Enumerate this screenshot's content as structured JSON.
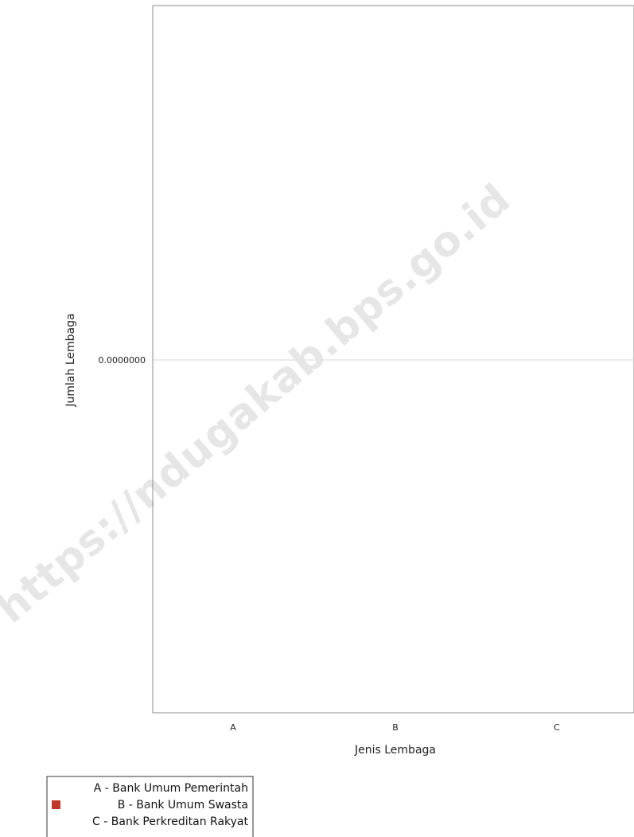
{
  "chart_data": {
    "type": "bar",
    "categories": [
      "A",
      "B",
      "C"
    ],
    "series": [
      {
        "name": "Bank Umum Pemerintah",
        "category": "A",
        "value": 0,
        "color": "#1f4e9c"
      },
      {
        "name": "Bank Umum Swasta",
        "category": "B",
        "value": 0,
        "color": "#c0392b"
      },
      {
        "name": "Bank Perkreditan Rakyat",
        "category": "C",
        "value": 0,
        "color": "#2e8b57"
      }
    ],
    "xlabel": "Jenis Lembaga",
    "ylabel": "Jumlah Lembaga",
    "y_ticks": [
      "0.0000000"
    ],
    "legend": {
      "placement": "bottom-left",
      "entries": [
        {
          "key": "A",
          "label": "A - Bank Umum Pemerintah",
          "show_marker": false
        },
        {
          "key": "B",
          "label": "B - Bank Umum Swasta",
          "show_marker": true
        },
        {
          "key": "C",
          "label": "C - Bank Perkreditan Rakyat",
          "show_marker": false
        }
      ]
    },
    "grid": false
  },
  "watermark": "https://ndugakab.bps.go.id",
  "colors": {
    "axis": "#8c8c8c",
    "zero_line": "#e3e3e3",
    "legend_border": "#333333"
  }
}
